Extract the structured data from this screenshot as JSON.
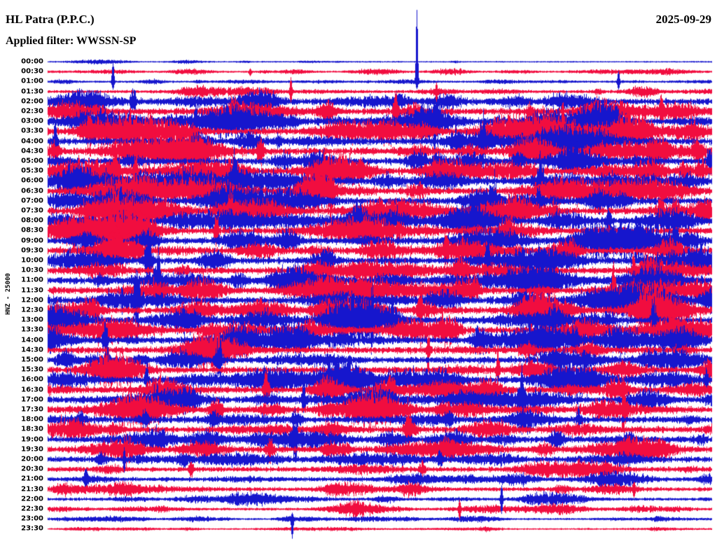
{
  "header": {
    "station": "HL Patra (P.P.C.)",
    "date": "2025-09-29",
    "filter_label": "Applied filter: WWSSN-SP"
  },
  "chart_data": {
    "type": "line",
    "subtype": "helicorder-seismogram",
    "title": "HL Patra (P.P.C.)",
    "date": "2025-09-29",
    "filter": "WWSSN-SP",
    "y_axis_label": "HNZ - 25000",
    "minutes_per_row": 30,
    "n_rows": 48,
    "legend_position": "none",
    "grid": "off",
    "colors": {
      "blue": "#1616cd",
      "red": "#f10d3f",
      "text": "#000000",
      "background": "#ffffff"
    },
    "rows": [
      {
        "time": "00:00",
        "color": "blue",
        "activity": 0.12
      },
      {
        "time": "00:30",
        "color": "red",
        "activity": 0.15
      },
      {
        "time": "01:00",
        "color": "blue",
        "activity": 0.2
      },
      {
        "time": "01:30",
        "color": "red",
        "activity": 0.3
      },
      {
        "time": "02:00",
        "color": "blue",
        "activity": 0.75
      },
      {
        "time": "02:30",
        "color": "red",
        "activity": 0.85
      },
      {
        "time": "03:00",
        "color": "blue",
        "activity": 0.95
      },
      {
        "time": "03:30",
        "color": "red",
        "activity": 1.0
      },
      {
        "time": "04:00",
        "color": "blue",
        "activity": 1.05
      },
      {
        "time": "04:30",
        "color": "red",
        "activity": 1.05
      },
      {
        "time": "05:00",
        "color": "blue",
        "activity": 1.05
      },
      {
        "time": "05:30",
        "color": "red",
        "activity": 1.0
      },
      {
        "time": "06:00",
        "color": "blue",
        "activity": 1.0
      },
      {
        "time": "06:30",
        "color": "red",
        "activity": 1.05
      },
      {
        "time": "07:00",
        "color": "blue",
        "activity": 1.1
      },
      {
        "time": "07:30",
        "color": "red",
        "activity": 1.1
      },
      {
        "time": "08:00",
        "color": "blue",
        "activity": 1.05
      },
      {
        "time": "08:30",
        "color": "red",
        "activity": 1.0
      },
      {
        "time": "09:00",
        "color": "blue",
        "activity": 1.05
      },
      {
        "time": "09:30",
        "color": "red",
        "activity": 1.0
      },
      {
        "time": "10:00",
        "color": "blue",
        "activity": 1.0
      },
      {
        "time": "10:30",
        "color": "red",
        "activity": 1.0
      },
      {
        "time": "11:00",
        "color": "blue",
        "activity": 1.0
      },
      {
        "time": "11:30",
        "color": "red",
        "activity": 1.0
      },
      {
        "time": "12:00",
        "color": "blue",
        "activity": 1.0
      },
      {
        "time": "12:30",
        "color": "red",
        "activity": 0.95
      },
      {
        "time": "13:00",
        "color": "blue",
        "activity": 1.0
      },
      {
        "time": "13:30",
        "color": "red",
        "activity": 0.95
      },
      {
        "time": "14:00",
        "color": "blue",
        "activity": 0.95
      },
      {
        "time": "14:30",
        "color": "red",
        "activity": 0.9
      },
      {
        "time": "15:00",
        "color": "blue",
        "activity": 0.9
      },
      {
        "time": "15:30",
        "color": "red",
        "activity": 0.9
      },
      {
        "time": "16:00",
        "color": "blue",
        "activity": 0.9
      },
      {
        "time": "16:30",
        "color": "red",
        "activity": 0.85
      },
      {
        "time": "17:00",
        "color": "blue",
        "activity": 0.9
      },
      {
        "time": "17:30",
        "color": "red",
        "activity": 0.9
      },
      {
        "time": "18:00",
        "color": "blue",
        "activity": 0.85
      },
      {
        "time": "18:30",
        "color": "red",
        "activity": 0.8
      },
      {
        "time": "19:00",
        "color": "blue",
        "activity": 0.8
      },
      {
        "time": "19:30",
        "color": "red",
        "activity": 0.75
      },
      {
        "time": "20:00",
        "color": "blue",
        "activity": 0.6
      },
      {
        "time": "20:30",
        "color": "red",
        "activity": 0.5
      },
      {
        "time": "21:00",
        "color": "blue",
        "activity": 0.45
      },
      {
        "time": "21:30",
        "color": "red",
        "activity": 0.4
      },
      {
        "time": "22:00",
        "color": "blue",
        "activity": 0.3
      },
      {
        "time": "22:30",
        "color": "red",
        "activity": 0.25
      },
      {
        "time": "23:00",
        "color": "blue",
        "activity": 0.18
      },
      {
        "time": "23:30",
        "color": "red",
        "activity": 0.14
      }
    ],
    "events": [
      {
        "row": 2,
        "x": 0.556,
        "amp": 120,
        "up": 0.92
      },
      {
        "row": 3,
        "x": 0.585,
        "amp": 28,
        "up": 0.5
      },
      {
        "row": 2,
        "x": 0.098,
        "amp": 45,
        "up": 0.75
      },
      {
        "row": 1,
        "x": 0.305,
        "amp": 10,
        "up": 0.5
      },
      {
        "row": 3,
        "x": 0.366,
        "amp": 38,
        "up": 0.6
      },
      {
        "row": 2,
        "x": 0.86,
        "amp": 26,
        "up": 0.6
      },
      {
        "row": 40,
        "x": 0.115,
        "amp": 35,
        "up": 0.5
      },
      {
        "row": 44,
        "x": 0.684,
        "amp": 45,
        "up": 0.5
      },
      {
        "row": 45,
        "x": 0.62,
        "amp": 30,
        "up": 0.5
      },
      {
        "row": 46,
        "x": 0.368,
        "amp": 40,
        "up": 0.25
      }
    ]
  }
}
